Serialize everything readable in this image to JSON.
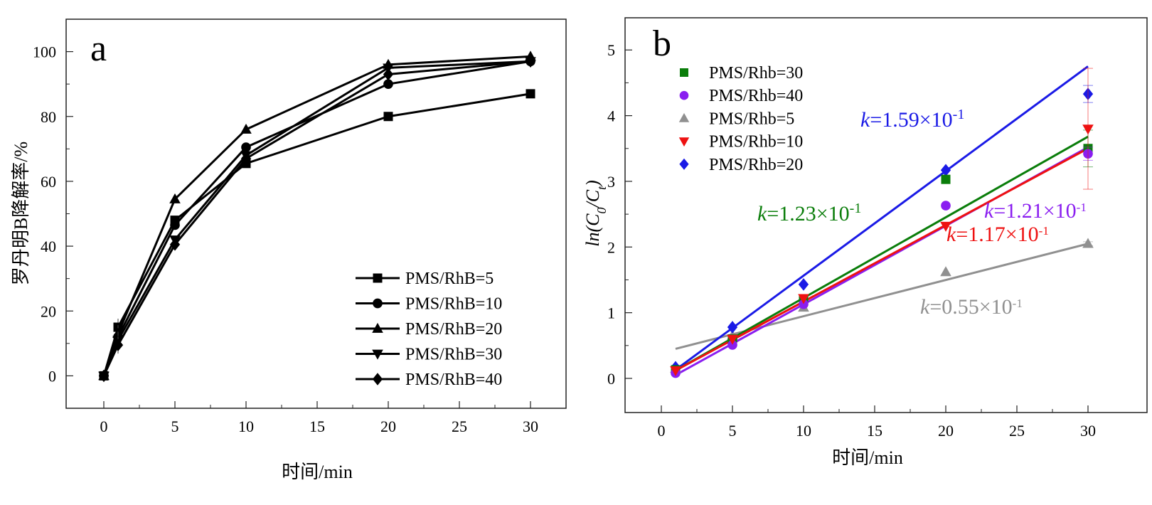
{
  "chart_data": [
    {
      "panel": "a",
      "type": "line",
      "panel_label": "a",
      "xlabel": "时间/min",
      "ylabel": "罗丹明B降解率/%",
      "xlim": [
        -2.65,
        32.5
      ],
      "ylim": [
        -10,
        110
      ],
      "xticks": [
        0,
        5,
        10,
        15,
        20,
        25,
        30
      ],
      "yticks": [
        0,
        20,
        40,
        60,
        80,
        100
      ],
      "grid": false,
      "legend_position": "bottom-right",
      "x": [
        0,
        1,
        5,
        10,
        20,
        30
      ],
      "series": [
        {
          "name": "PMS/RhB=5",
          "marker": "square",
          "color": "#000000",
          "values": [
            0,
            15,
            48,
            65.5,
            80,
            87
          ]
        },
        {
          "name": "PMS/RhB=10",
          "marker": "circle",
          "color": "#000000",
          "values": [
            0,
            12,
            46.5,
            70.5,
            90,
            97
          ]
        },
        {
          "name": "PMS/RhB=20",
          "marker": "triangle-up",
          "color": "#000000",
          "values": [
            0,
            13,
            54.5,
            76,
            96,
            98.5
          ]
        },
        {
          "name": "PMS/RhB=30",
          "marker": "triangle-down",
          "color": "#000000",
          "values": [
            0,
            11,
            42,
            68,
            95,
            97
          ]
        },
        {
          "name": "PMS/RhB=40",
          "marker": "diamond",
          "color": "#000000",
          "values": [
            0,
            9.5,
            40.5,
            67,
            93,
            97
          ]
        }
      ]
    },
    {
      "panel": "b",
      "type": "scatter",
      "panel_label": "b",
      "xlabel": "时间/min",
      "ylabel_parts": {
        "prefix": "ln(C",
        "sub1": "0",
        "mid": "/C",
        "sub2": "t",
        "suffix": ")"
      },
      "xlim": [
        -2.55,
        34.15
      ],
      "ylim": [
        -0.52,
        5.49
      ],
      "xticks": [
        0,
        5,
        10,
        15,
        20,
        25,
        30
      ],
      "yticks": [
        0,
        1,
        2,
        3,
        4,
        5
      ],
      "grid": false,
      "legend_position": "top-left",
      "x": [
        1,
        5,
        10,
        20,
        30
      ],
      "series": [
        {
          "name": "PMS/Rhb=30",
          "marker": "square",
          "color": "#0a7d0a",
          "values": [
            0.13,
            0.6,
            1.2,
            3.03,
            3.5
          ],
          "fit": {
            "x": [
              1,
              30
            ],
            "y": [
              0.12,
              3.68
            ]
          },
          "k_label": {
            "prefix": "k",
            "text": "=1.23×10",
            "exp": "-1"
          },
          "error_at_30": 0.28
        },
        {
          "name": "PMS/Rhb=40",
          "marker": "circle",
          "color": "#8a1ef0",
          "values": [
            0.08,
            0.51,
            1.13,
            2.63,
            3.42
          ],
          "fit": {
            "x": [
              1,
              30
            ],
            "y": [
              0.05,
              3.52
            ]
          },
          "k_label": {
            "prefix": "k",
            "text": "=1.21×10",
            "exp": "-1"
          },
          "error_at_30": 0.1
        },
        {
          "name": "PMS/Rhb=5",
          "marker": "triangle-up",
          "color": "#909090",
          "values": [
            0.15,
            0.65,
            1.08,
            1.62,
            2.05
          ],
          "fit": {
            "x": [
              1,
              30
            ],
            "y": [
              0.45,
              2.05
            ]
          },
          "k_label": {
            "prefix": "k",
            "text": "=0.55×10",
            "exp": "-1"
          },
          "error_at_30": 0.03
        },
        {
          "name": "PMS/Rhb=10",
          "marker": "triangle-down",
          "color": "#ee1111",
          "values": [
            0.12,
            0.6,
            1.22,
            2.32,
            3.8
          ],
          "fit": {
            "x": [
              1,
              30
            ],
            "y": [
              0.12,
              3.5
            ]
          },
          "k_label": {
            "prefix": "k",
            "text": "=1.17×10",
            "exp": "-1"
          },
          "error_at_30": 0.92
        },
        {
          "name": "PMS/Rhb=20",
          "marker": "diamond",
          "color": "#1a1ae6",
          "values": [
            0.17,
            0.78,
            1.43,
            3.17,
            4.33
          ],
          "fit": {
            "x": [
              1,
              30
            ],
            "y": [
              0.13,
              4.75
            ]
          },
          "k_label": {
            "prefix": "k",
            "text": "=1.59×10",
            "exp": "-1"
          },
          "error_at_30": 0.13
        }
      ]
    }
  ]
}
